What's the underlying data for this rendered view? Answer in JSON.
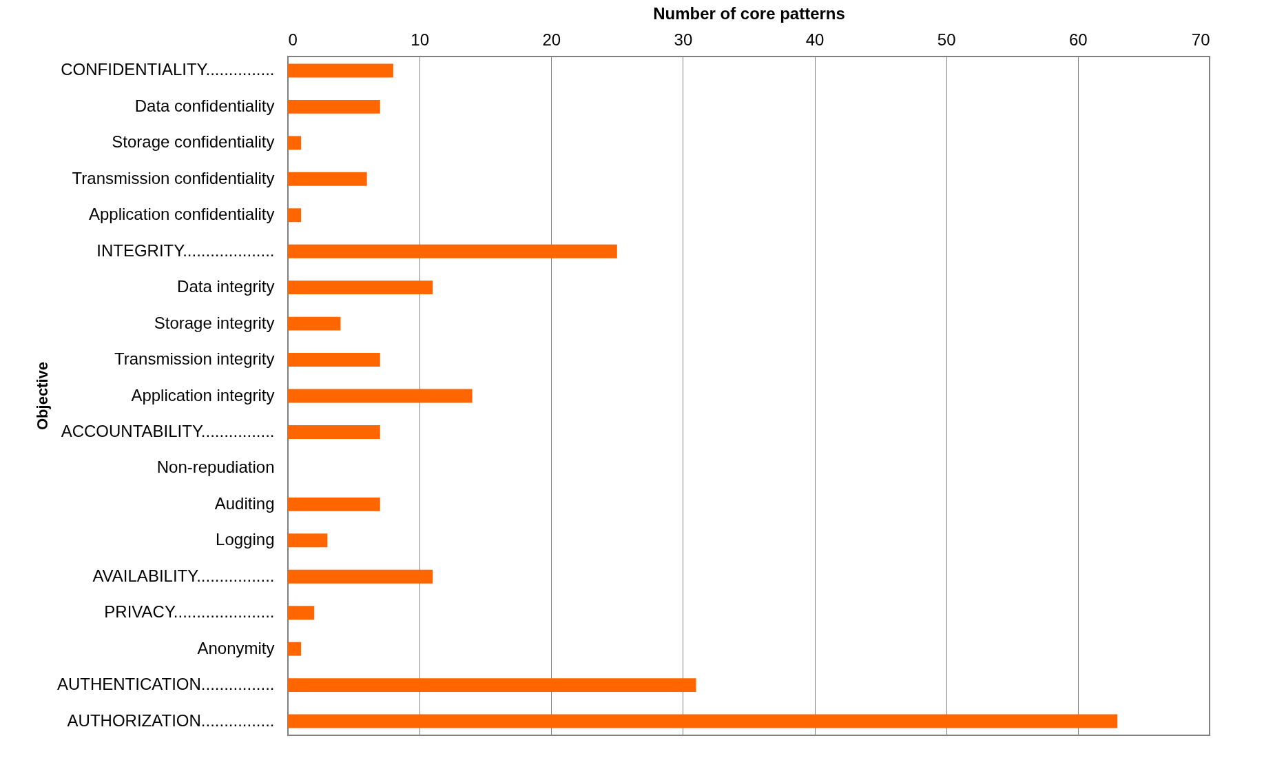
{
  "chart_data": {
    "type": "bar",
    "orientation": "horizontal",
    "xlabel": "Number of core patterns",
    "ylabel": "Objective",
    "categories": [
      "CONFIDENTIALITY...............",
      "Data confidentiality",
      "Storage confidentiality",
      "Transmission confidentiality",
      "Application confidentiality",
      "INTEGRITY....................",
      "Data integrity",
      "Storage integrity",
      "Transmission integrity",
      "Application integrity",
      "ACCOUNTABILITY................",
      "Non-repudiation",
      "Auditing",
      "Logging",
      "AVAILABILITY.................",
      "PRIVACY......................",
      "Anonymity",
      "AUTHENTICATION................",
      "AUTHORIZATION................"
    ],
    "values": [
      8,
      7,
      1,
      6,
      1,
      25,
      11,
      4,
      7,
      14,
      7,
      0,
      7,
      3,
      11,
      2,
      1,
      31,
      63
    ],
    "color": "#ff6600",
    "xlim": [
      0,
      70
    ],
    "xticks": [
      0,
      10,
      20,
      30,
      40,
      50,
      60,
      70
    ],
    "grid": "x"
  }
}
